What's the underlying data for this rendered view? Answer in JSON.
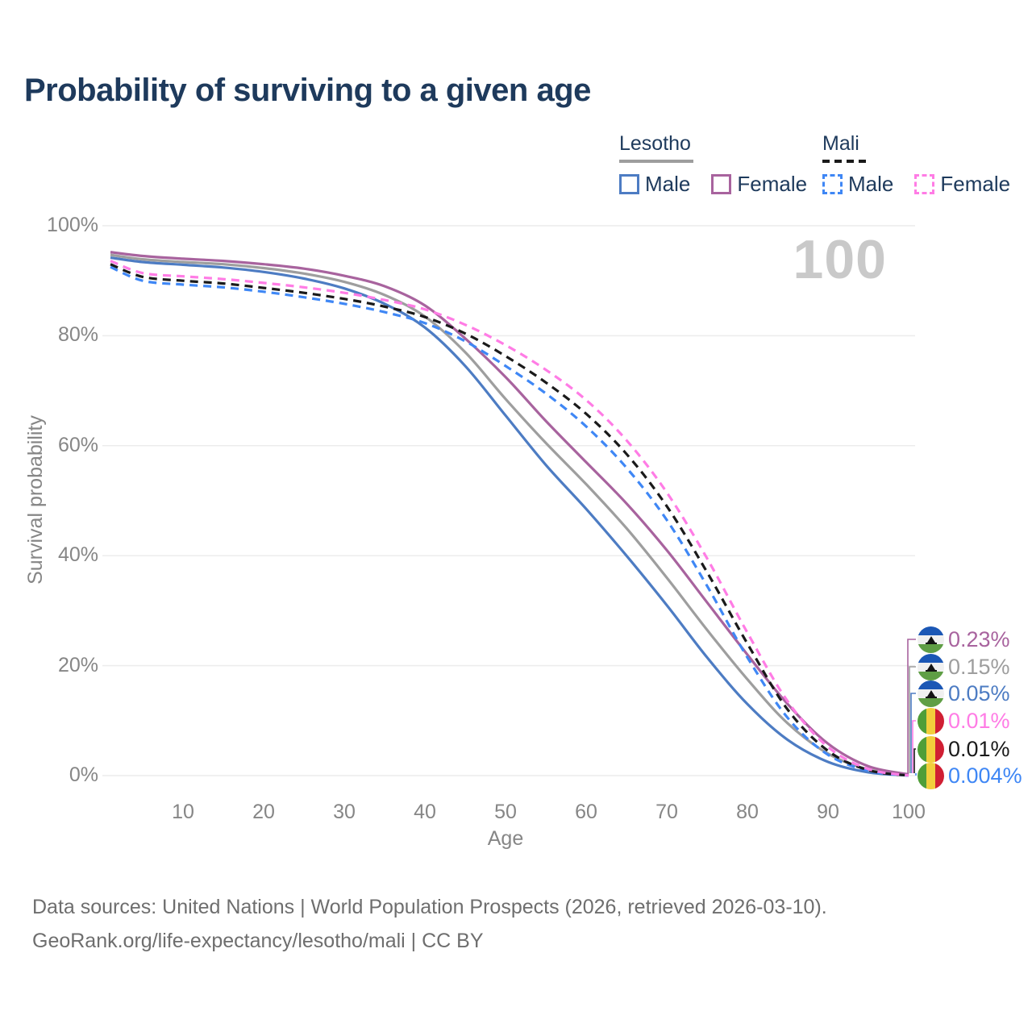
{
  "title": "Probability of surviving to a given age",
  "legend": {
    "groups": [
      {
        "title": "Lesotho",
        "line_style": "solid",
        "underline_color": "#9e9e9e",
        "items": [
          {
            "label": "Male",
            "color": "#4d7cc3"
          },
          {
            "label": "Female",
            "color": "#a8639e"
          }
        ]
      },
      {
        "title": "Mali",
        "line_style": "dashed",
        "underline_color": "#1a1a1a",
        "items": [
          {
            "label": "Male",
            "color": "#3f87f5"
          },
          {
            "label": "Female",
            "color": "#ff7ce5"
          }
        ]
      }
    ]
  },
  "highlight": {
    "age": "100"
  },
  "chart_data": {
    "type": "line",
    "title": "Probability of surviving to a given age",
    "x_label": "Age",
    "y_label": "Survival probability",
    "x_range": [
      1,
      100
    ],
    "y_range": [
      0,
      100
    ],
    "y_ticks": [
      "100%",
      "80%",
      "60%",
      "40%",
      "20%",
      "0%"
    ],
    "x_ticks": [
      "10",
      "20",
      "30",
      "40",
      "50",
      "60",
      "70",
      "80",
      "90",
      "100"
    ],
    "grid": "horizontal",
    "legend_position": "top-right",
    "x": [
      1,
      5,
      10,
      15,
      20,
      25,
      30,
      35,
      40,
      45,
      50,
      55,
      60,
      65,
      70,
      75,
      80,
      85,
      90,
      95,
      100
    ],
    "series": [
      {
        "id": "lesotho-male",
        "country": "Lesotho",
        "sex": "Male",
        "color": "#4d7cc3",
        "dash": "solid",
        "end_value_label": "0.05%",
        "values": [
          94.2,
          93.4,
          92.9,
          92.4,
          91.6,
          90.4,
          88.6,
          85.8,
          81.5,
          74.5,
          65.5,
          56.5,
          48.5,
          40.0,
          31.0,
          21.5,
          13.0,
          6.5,
          2.5,
          0.6,
          0.05
        ]
      },
      {
        "id": "lesotho-both",
        "country": "Lesotho",
        "sex": "Both",
        "color": "#9e9e9e",
        "dash": "solid",
        "end_value_label": "0.15%",
        "values": [
          94.7,
          93.9,
          93.4,
          93.0,
          92.3,
          91.3,
          89.8,
          87.4,
          83.5,
          77.0,
          68.5,
          60.5,
          53.0,
          45.0,
          36.0,
          26.5,
          17.5,
          9.5,
          4.0,
          1.1,
          0.15
        ]
      },
      {
        "id": "lesotho-female",
        "country": "Lesotho",
        "sex": "Female",
        "color": "#a8639e",
        "dash": "solid",
        "end_value_label": "0.23%",
        "values": [
          95.2,
          94.5,
          94.0,
          93.6,
          93.0,
          92.2,
          90.9,
          89.0,
          85.5,
          79.5,
          72.5,
          64.5,
          57.0,
          49.5,
          41.0,
          31.5,
          22.0,
          13.0,
          5.8,
          1.7,
          0.23
        ]
      },
      {
        "id": "mali-male",
        "country": "Mali",
        "sex": "Male",
        "color": "#3f87f5",
        "dash": "dashed",
        "end_value_label": "0.004%",
        "values": [
          92.5,
          90.0,
          89.3,
          88.8,
          88.0,
          87.0,
          85.8,
          84.3,
          82.3,
          79.0,
          74.5,
          69.5,
          63.5,
          56.0,
          46.5,
          34.5,
          21.5,
          10.5,
          3.8,
          0.9,
          0.004
        ]
      },
      {
        "id": "mali-both",
        "country": "Mali",
        "sex": "Both",
        "color": "#1a1a1a",
        "dash": "dashed",
        "end_value_label": "0.01%",
        "values": [
          93.0,
          90.7,
          90.0,
          89.5,
          88.7,
          87.8,
          86.7,
          85.3,
          83.4,
          80.4,
          76.3,
          71.5,
          65.8,
          58.5,
          49.0,
          37.0,
          24.0,
          12.0,
          4.5,
          1.0,
          0.01
        ]
      },
      {
        "id": "mali-female",
        "country": "Mali",
        "sex": "Female",
        "color": "#ff7ce5",
        "dash": "dashed",
        "end_value_label": "0.01%",
        "values": [
          93.6,
          91.4,
          90.8,
          90.3,
          89.6,
          88.8,
          87.8,
          86.5,
          84.8,
          82.0,
          78.3,
          73.8,
          68.3,
          61.0,
          51.5,
          39.5,
          26.0,
          13.5,
          5.2,
          1.2,
          0.01
        ]
      }
    ]
  },
  "endpoints": [
    {
      "country": "Lesotho",
      "flag": "lesotho",
      "value": "0.23%",
      "color": "#a8639e"
    },
    {
      "country": "Lesotho",
      "flag": "lesotho",
      "value": "0.15%",
      "color": "#9e9e9e"
    },
    {
      "country": "Lesotho",
      "flag": "lesotho",
      "value": "0.05%",
      "color": "#4d7cc3"
    },
    {
      "country": "Mali",
      "flag": "mali",
      "value": "0.01%",
      "color": "#ff7ce5"
    },
    {
      "country": "Mali",
      "flag": "mali",
      "value": "0.01%",
      "color": "#1a1a1a"
    },
    {
      "country": "Mali",
      "flag": "mali",
      "value": "0.004%",
      "color": "#3f87f5"
    }
  ],
  "footer": {
    "line1": "Data sources: United Nations | World Population Prospects (2026, retrieved 2026-03-10).",
    "line2": "GeoRank.org/life-expectancy/lesotho/mali | CC BY"
  }
}
